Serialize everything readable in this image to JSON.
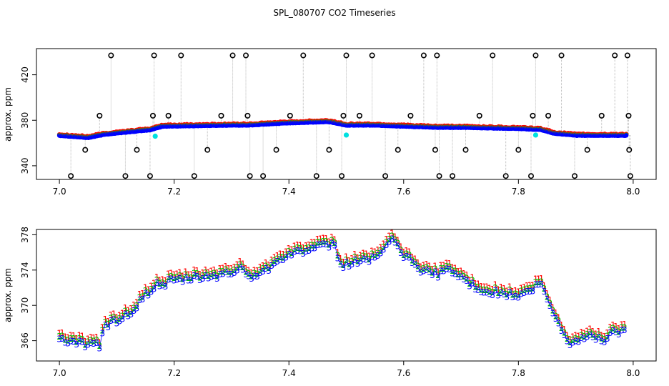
{
  "title": "SPL_080707  CO2 Timeseries",
  "chart_data": [
    {
      "type": "scatter",
      "id": "top",
      "ylabel": "approx. ppm",
      "xlabel": "",
      "xlim": [
        6.96,
        8.04
      ],
      "ylim": [
        328,
        443
      ],
      "xticks": [
        "7.0",
        "7.2",
        "7.4",
        "7.6",
        "7.8",
        "8.0"
      ],
      "yticks": [
        "340",
        "380",
        "420"
      ],
      "colors": {
        "series1": "#ff0000",
        "series2": "#00c000",
        "series3": "#0000ff",
        "cal": "#00e0e0",
        "spike": "#000000",
        "line": "#bbbbbb"
      },
      "baseline_anchors": [
        [
          7.0,
          367
        ],
        [
          7.05,
          365
        ],
        [
          7.08,
          368
        ],
        [
          7.12,
          370
        ],
        [
          7.16,
          372
        ],
        [
          7.18,
          375
        ],
        [
          7.3,
          376
        ],
        [
          7.33,
          376
        ],
        [
          7.4,
          378
        ],
        [
          7.47,
          379
        ],
        [
          7.5,
          376
        ],
        [
          7.55,
          376
        ],
        [
          7.6,
          375
        ],
        [
          7.66,
          374
        ],
        [
          7.7,
          374
        ],
        [
          7.8,
          373
        ],
        [
          7.84,
          372
        ],
        [
          7.86,
          369
        ],
        [
          7.9,
          367
        ],
        [
          7.99,
          367
        ]
      ],
      "spikes": [
        {
          "x": 7.02,
          "y": 331
        },
        {
          "x": 7.045,
          "y": 354
        },
        {
          "x": 7.07,
          "y": 384
        },
        {
          "x": 7.09,
          "y": 437
        },
        {
          "x": 7.115,
          "y": 331
        },
        {
          "x": 7.135,
          "y": 354
        },
        {
          "x": 7.158,
          "y": 331
        },
        {
          "x": 7.163,
          "y": 384
        },
        {
          "x": 7.165,
          "y": 437
        },
        {
          "x": 7.19,
          "y": 384
        },
        {
          "x": 7.212,
          "y": 437
        },
        {
          "x": 7.235,
          "y": 331
        },
        {
          "x": 7.258,
          "y": 354
        },
        {
          "x": 7.282,
          "y": 384
        },
        {
          "x": 7.302,
          "y": 437
        },
        {
          "x": 7.325,
          "y": 437
        },
        {
          "x": 7.328,
          "y": 384
        },
        {
          "x": 7.332,
          "y": 331
        },
        {
          "x": 7.355,
          "y": 331
        },
        {
          "x": 7.378,
          "y": 354
        },
        {
          "x": 7.402,
          "y": 384
        },
        {
          "x": 7.425,
          "y": 437
        },
        {
          "x": 7.448,
          "y": 331
        },
        {
          "x": 7.47,
          "y": 354
        },
        {
          "x": 7.492,
          "y": 331
        },
        {
          "x": 7.495,
          "y": 384
        },
        {
          "x": 7.5,
          "y": 437
        },
        {
          "x": 7.523,
          "y": 384
        },
        {
          "x": 7.545,
          "y": 437
        },
        {
          "x": 7.568,
          "y": 331
        },
        {
          "x": 7.59,
          "y": 354
        },
        {
          "x": 7.612,
          "y": 384
        },
        {
          "x": 7.635,
          "y": 437
        },
        {
          "x": 7.655,
          "y": 354
        },
        {
          "x": 7.658,
          "y": 437
        },
        {
          "x": 7.662,
          "y": 331
        },
        {
          "x": 7.685,
          "y": 331
        },
        {
          "x": 7.708,
          "y": 354
        },
        {
          "x": 7.732,
          "y": 384
        },
        {
          "x": 7.755,
          "y": 437
        },
        {
          "x": 7.778,
          "y": 331
        },
        {
          "x": 7.8,
          "y": 354
        },
        {
          "x": 7.822,
          "y": 331
        },
        {
          "x": 7.825,
          "y": 384
        },
        {
          "x": 7.83,
          "y": 437
        },
        {
          "x": 7.852,
          "y": 384
        },
        {
          "x": 7.875,
          "y": 437
        },
        {
          "x": 7.898,
          "y": 331
        },
        {
          "x": 7.92,
          "y": 354
        },
        {
          "x": 7.945,
          "y": 384
        },
        {
          "x": 7.968,
          "y": 437
        },
        {
          "x": 7.99,
          "y": 437
        },
        {
          "x": 7.992,
          "y": 384
        },
        {
          "x": 7.993,
          "y": 354
        },
        {
          "x": 7.995,
          "y": 331
        }
      ],
      "cal_points": [
        {
          "x": 7.167,
          "y": 366
        },
        {
          "x": 7.5,
          "y": 367
        },
        {
          "x": 7.83,
          "y": 367
        }
      ]
    },
    {
      "type": "scatter",
      "id": "bottom",
      "ylabel": "approx. ppm",
      "xlabel": "",
      "xlim": [
        6.96,
        8.04
      ],
      "ylim": [
        363.7,
        378.6
      ],
      "xticks": [
        "7.0",
        "7.2",
        "7.4",
        "7.6",
        "7.8",
        "8.0"
      ],
      "yticks": [
        "366",
        "370",
        "374",
        "378"
      ],
      "series_symbols": [
        "1",
        "2",
        "3"
      ],
      "colors": {
        "series1": "#ff0000",
        "series2": "#00c000",
        "series3": "#0000ff",
        "line": "#0000ff"
      },
      "anchors": [
        [
          7.0,
          366.3
        ],
        [
          7.02,
          365.8
        ],
        [
          7.05,
          365.6
        ],
        [
          7.07,
          365.5
        ],
        [
          7.08,
          367.8
        ],
        [
          7.1,
          368.3
        ],
        [
          7.13,
          369.5
        ],
        [
          7.15,
          371.2
        ],
        [
          7.17,
          372.3
        ],
        [
          7.2,
          372.8
        ],
        [
          7.25,
          373.2
        ],
        [
          7.3,
          373.6
        ],
        [
          7.315,
          374.5
        ],
        [
          7.33,
          373.2
        ],
        [
          7.36,
          374.0
        ],
        [
          7.38,
          375.3
        ],
        [
          7.4,
          375.8
        ],
        [
          7.43,
          376.3
        ],
        [
          7.46,
          376.7
        ],
        [
          7.48,
          376.9
        ],
        [
          7.49,
          374.5
        ],
        [
          7.52,
          375.0
        ],
        [
          7.55,
          375.5
        ],
        [
          7.58,
          377.3
        ],
        [
          7.6,
          375.8
        ],
        [
          7.62,
          374.5
        ],
        [
          7.64,
          373.8
        ],
        [
          7.66,
          373.5
        ],
        [
          7.67,
          374.3
        ],
        [
          7.7,
          373.2
        ],
        [
          7.72,
          372.3
        ],
        [
          7.75,
          371.5
        ],
        [
          7.78,
          371.3
        ],
        [
          7.8,
          371.0
        ],
        [
          7.82,
          371.7
        ],
        [
          7.84,
          372.5
        ],
        [
          7.85,
          370.5
        ],
        [
          7.87,
          368.0
        ],
        [
          7.88,
          366.5
        ],
        [
          7.89,
          365.8
        ],
        [
          7.91,
          366.3
        ],
        [
          7.93,
          366.5
        ],
        [
          7.95,
          366.2
        ],
        [
          7.97,
          367.2
        ],
        [
          7.98,
          367.0
        ]
      ]
    }
  ]
}
